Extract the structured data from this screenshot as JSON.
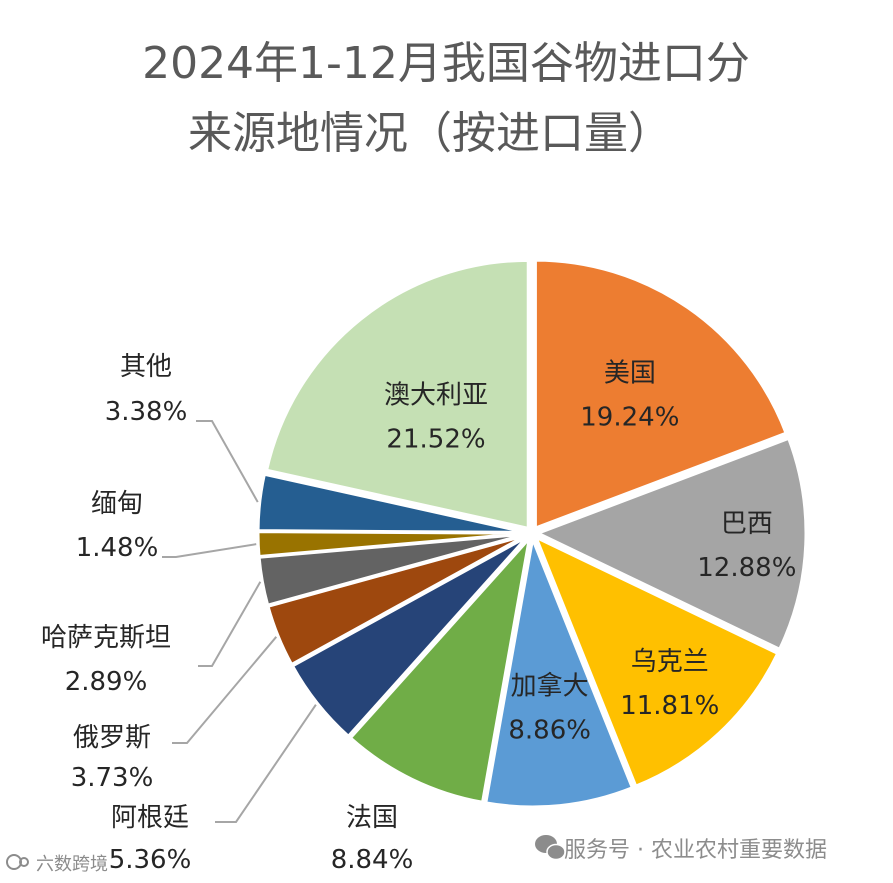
{
  "chart_data": {
    "type": "pie",
    "title_lines": [
      "2024年1-12月我国谷物进口分",
      "来源地情况（按进口量）"
    ],
    "slices": [
      {
        "name": "美国",
        "value": "19.24%",
        "pct": 19.24,
        "color": "#ED7D31"
      },
      {
        "name": "巴西",
        "value": "12.88%",
        "pct": 12.88,
        "color": "#A5A5A5"
      },
      {
        "name": "乌克兰",
        "value": "11.81%",
        "pct": 11.81,
        "color": "#FFC000"
      },
      {
        "name": "加拿大",
        "value": "8.86%",
        "pct": 8.86,
        "color": "#5B9BD5"
      },
      {
        "name": "法国",
        "value": "8.84%",
        "pct": 8.84,
        "color": "#70AD47"
      },
      {
        "name": "阿根廷",
        "value": "5.36%",
        "pct": 5.36,
        "color": "#264478"
      },
      {
        "name": "俄罗斯",
        "value": "3.73%",
        "pct": 3.73,
        "color": "#9E480E"
      },
      {
        "name": "哈萨克斯坦",
        "value": "2.89%",
        "pct": 2.89,
        "color": "#636363"
      },
      {
        "name": "缅甸",
        "value": "1.48%",
        "pct": 1.48,
        "color": "#997300"
      },
      {
        "name": "其他",
        "value": "3.38%",
        "pct": 3.38,
        "color": "#255E91"
      },
      {
        "name": "澳大利亚",
        "value": "21.52%",
        "pct": 21.52,
        "color": "#C5E0B4"
      }
    ]
  },
  "watermark": {
    "left_text": "六数跨境",
    "right_text": "服务号 · 农业农村重要数据",
    "left_icon": "logo-icon",
    "right_icon": "wechat-icon"
  }
}
